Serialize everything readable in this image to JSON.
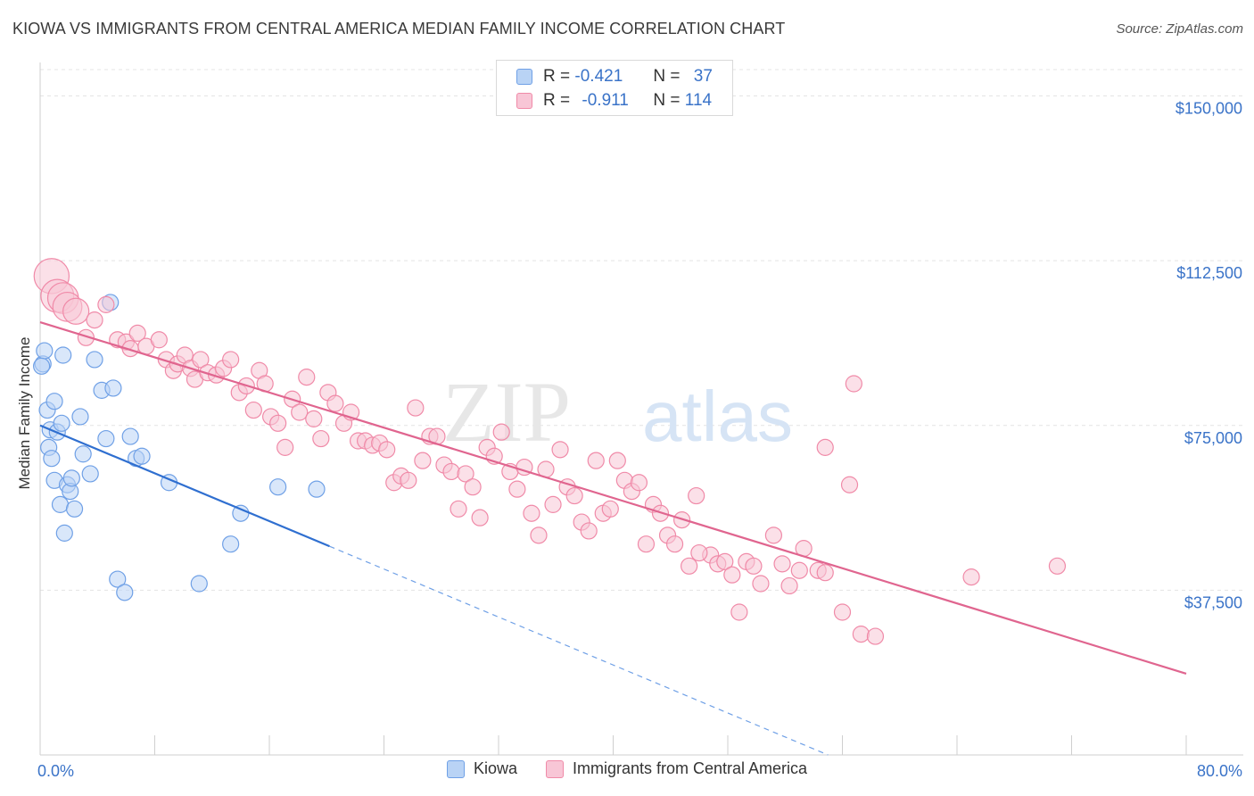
{
  "title": "KIOWA VS IMMIGRANTS FROM CENTRAL AMERICA MEDIAN FAMILY INCOME CORRELATION CHART",
  "source": "Source: ZipAtlas.com",
  "watermark": {
    "zip": "ZIP",
    "atlas": "atlas"
  },
  "legend_top": {
    "rows": [
      {
        "r_label": "R =",
        "r_value": "-0.421",
        "n_label": "N =",
        "n_value": "37",
        "color": "#6fa0e6"
      },
      {
        "r_label": "R =",
        "r_value": "-0.911",
        "n_label": "N =",
        "n_value": "114",
        "color": "#f08aa8"
      }
    ]
  },
  "legend_bottom": [
    "Kiowa",
    "Immigrants from Central America"
  ],
  "chart_data": {
    "type": "scatter",
    "title": "KIOWA VS IMMIGRANTS FROM CENTRAL AMERICA MEDIAN FAMILY INCOME CORRELATION CHART",
    "xlabel": "",
    "ylabel": "Median Family Income",
    "xlim": [
      0,
      80
    ],
    "ylim": [
      0,
      156000
    ],
    "x_tick_labels": [
      "0.0%",
      "80.0%"
    ],
    "y_ticks": [
      37500,
      75000,
      112500,
      150000
    ],
    "y_tick_labels": [
      "$37,500",
      "$75,000",
      "$112,500",
      "$150,000"
    ],
    "grid": true,
    "legend_position": "top-center",
    "series": [
      {
        "name": "Kiowa",
        "color": "#6fa0e6",
        "fill": "#b9d3f5",
        "points": [
          [
            0.2,
            89000
          ],
          [
            0.3,
            92000
          ],
          [
            0.5,
            78500
          ],
          [
            0.6,
            70000
          ],
          [
            0.7,
            74000
          ],
          [
            0.8,
            67500
          ],
          [
            1.0,
            80500
          ],
          [
            1.0,
            62500
          ],
          [
            1.2,
            73500
          ],
          [
            1.4,
            57000
          ],
          [
            1.5,
            75500
          ],
          [
            1.6,
            91000
          ],
          [
            1.7,
            50500
          ],
          [
            1.9,
            61500
          ],
          [
            2.1,
            60000
          ],
          [
            2.2,
            63000
          ],
          [
            2.4,
            56000
          ],
          [
            2.8,
            77000
          ],
          [
            3.0,
            68500
          ],
          [
            3.5,
            64000
          ],
          [
            3.8,
            90000
          ],
          [
            4.3,
            83000
          ],
          [
            4.6,
            72000
          ],
          [
            4.9,
            103000
          ],
          [
            5.1,
            83500
          ],
          [
            5.4,
            40000
          ],
          [
            5.9,
            37000
          ],
          [
            6.3,
            72500
          ],
          [
            6.7,
            67500
          ],
          [
            7.1,
            68000
          ],
          [
            9.0,
            62000
          ],
          [
            11.1,
            39000
          ],
          [
            13.3,
            48000
          ],
          [
            14.0,
            55000
          ],
          [
            16.6,
            61000
          ],
          [
            19.3,
            60500
          ],
          [
            0.1,
            88500
          ]
        ],
        "trend": {
          "x0": 0,
          "y0": 75000,
          "x1": 20.2,
          "y1": 47500,
          "dashed_to_x": 55,
          "dashed_to_y": 0
        }
      },
      {
        "name": "Immigrants from Central America",
        "color": "#f08aa8",
        "fill": "#f8c6d6",
        "points": [
          [
            0.8,
            109000
          ],
          [
            1.2,
            104500
          ],
          [
            1.6,
            104000
          ],
          [
            1.9,
            102000
          ],
          [
            2.5,
            101000
          ],
          [
            3.2,
            95000
          ],
          [
            3.8,
            99000
          ],
          [
            4.6,
            102500
          ],
          [
            5.4,
            94500
          ],
          [
            6.0,
            94000
          ],
          [
            6.3,
            92500
          ],
          [
            6.8,
            96000
          ],
          [
            7.4,
            93000
          ],
          [
            8.3,
            94500
          ],
          [
            8.8,
            90000
          ],
          [
            9.3,
            87500
          ],
          [
            9.6,
            89000
          ],
          [
            10.1,
            91000
          ],
          [
            10.5,
            88000
          ],
          [
            10.8,
            85500
          ],
          [
            11.2,
            90000
          ],
          [
            11.7,
            87000
          ],
          [
            12.3,
            86500
          ],
          [
            12.8,
            88000
          ],
          [
            13.3,
            90000
          ],
          [
            13.9,
            82500
          ],
          [
            14.4,
            84000
          ],
          [
            14.9,
            78500
          ],
          [
            15.3,
            87500
          ],
          [
            15.7,
            84500
          ],
          [
            16.1,
            77000
          ],
          [
            16.6,
            75500
          ],
          [
            17.1,
            70000
          ],
          [
            17.6,
            81000
          ],
          [
            18.1,
            78000
          ],
          [
            18.6,
            86000
          ],
          [
            19.1,
            76500
          ],
          [
            19.6,
            72000
          ],
          [
            20.1,
            82500
          ],
          [
            20.6,
            80000
          ],
          [
            21.2,
            75500
          ],
          [
            21.7,
            78000
          ],
          [
            22.2,
            71500
          ],
          [
            22.7,
            71500
          ],
          [
            23.2,
            70500
          ],
          [
            23.7,
            71000
          ],
          [
            24.2,
            69500
          ],
          [
            24.7,
            62000
          ],
          [
            25.2,
            63500
          ],
          [
            25.7,
            62500
          ],
          [
            26.2,
            79000
          ],
          [
            26.7,
            67000
          ],
          [
            27.2,
            72500
          ],
          [
            27.7,
            72500
          ],
          [
            28.2,
            66000
          ],
          [
            28.7,
            64500
          ],
          [
            29.2,
            56000
          ],
          [
            29.7,
            64000
          ],
          [
            30.2,
            61000
          ],
          [
            30.7,
            54000
          ],
          [
            31.2,
            70000
          ],
          [
            31.7,
            68000
          ],
          [
            32.2,
            73500
          ],
          [
            32.8,
            64500
          ],
          [
            33.3,
            60500
          ],
          [
            33.8,
            65500
          ],
          [
            34.3,
            55000
          ],
          [
            34.8,
            50000
          ],
          [
            35.3,
            65000
          ],
          [
            35.8,
            57000
          ],
          [
            36.3,
            69500
          ],
          [
            36.8,
            61000
          ],
          [
            37.3,
            59000
          ],
          [
            37.8,
            53000
          ],
          [
            38.3,
            51000
          ],
          [
            38.8,
            67000
          ],
          [
            39.3,
            55000
          ],
          [
            39.8,
            56000
          ],
          [
            40.3,
            67000
          ],
          [
            40.8,
            62500
          ],
          [
            41.3,
            60000
          ],
          [
            41.8,
            62000
          ],
          [
            42.3,
            48000
          ],
          [
            42.8,
            57000
          ],
          [
            43.3,
            55000
          ],
          [
            43.8,
            50000
          ],
          [
            44.3,
            48000
          ],
          [
            44.8,
            53500
          ],
          [
            45.3,
            43000
          ],
          [
            45.8,
            59000
          ],
          [
            46.8,
            45500
          ],
          [
            47.3,
            43500
          ],
          [
            47.8,
            44000
          ],
          [
            48.3,
            41000
          ],
          [
            48.8,
            32500
          ],
          [
            49.3,
            44000
          ],
          [
            49.8,
            43000
          ],
          [
            50.3,
            39000
          ],
          [
            51.2,
            50000
          ],
          [
            51.8,
            43500
          ],
          [
            52.3,
            38500
          ],
          [
            53.3,
            47000
          ],
          [
            54.3,
            42000
          ],
          [
            54.8,
            41500
          ],
          [
            56.0,
            32500
          ],
          [
            56.5,
            61500
          ],
          [
            56.8,
            84500
          ],
          [
            57.3,
            27500
          ],
          [
            58.3,
            27000
          ],
          [
            54.8,
            70000
          ],
          [
            65.0,
            40500
          ],
          [
            71.0,
            43000
          ],
          [
            53.0,
            42000
          ],
          [
            46.0,
            46000
          ]
        ],
        "trend": {
          "x0": 0,
          "y0": 98500,
          "x1": 80,
          "y1": 18500
        }
      }
    ]
  }
}
